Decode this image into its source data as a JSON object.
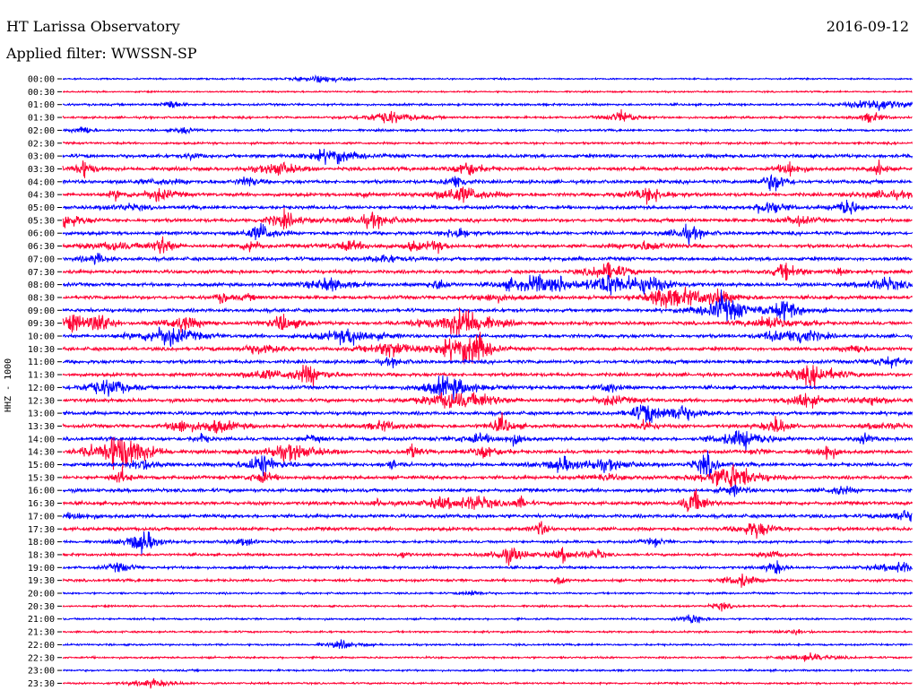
{
  "header": {
    "title": "HT Larissa Observatory",
    "date": "2016-09-12",
    "filter_label": "Applied filter:",
    "filter_value": "WWSSN-SP",
    "channel": "HHZ - 1000"
  },
  "colors": {
    "trace_a": "#0000ff",
    "trace_b": "#ff0033"
  },
  "chart_data": {
    "type": "line",
    "title": "HT Larissa Observatory",
    "xlabel": "",
    "ylabel": "HHZ - 1000",
    "y_tick_labels": [
      "00:00",
      "00:30",
      "01:00",
      "01:30",
      "02:00",
      "02:30",
      "03:00",
      "03:30",
      "04:00",
      "04:30",
      "05:00",
      "05:30",
      "06:00",
      "06:30",
      "07:00",
      "07:30",
      "08:00",
      "08:30",
      "09:00",
      "09:30",
      "10:00",
      "10:30",
      "11:00",
      "11:30",
      "12:00",
      "12:30",
      "13:00",
      "13:30",
      "14:00",
      "14:30",
      "15:00",
      "15:30",
      "16:00",
      "16:30",
      "17:00",
      "17:30",
      "18:00",
      "18:30",
      "19:00",
      "19:30",
      "20:00",
      "20:30",
      "21:00",
      "21:30",
      "22:00",
      "22:30",
      "23:00",
      "23:30"
    ],
    "trace_minutes": 30,
    "trace_colors": [
      "blue",
      "red"
    ],
    "grid": false,
    "legend": "none"
  }
}
